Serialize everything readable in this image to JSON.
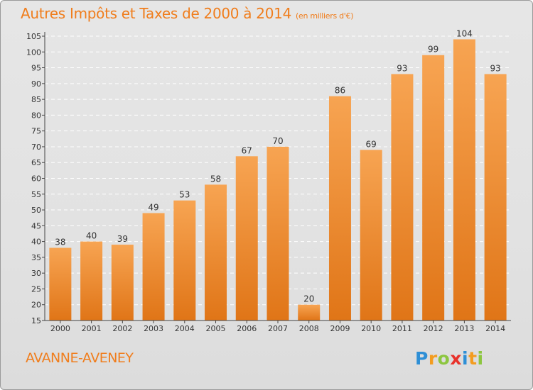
{
  "title": {
    "main": "Autres Impôts et Taxes de 2000 à 2014",
    "unit": "(en milliers d'€)"
  },
  "location": "AVANNE-AVENEY",
  "brand": {
    "name": "Proxiti",
    "letters": [
      {
        "char": "P",
        "color": "#2e8fd6"
      },
      {
        "char": "r",
        "color": "#f39c1f"
      },
      {
        "char": "o",
        "color": "#8cc63f"
      },
      {
        "char": "x",
        "color": "#e8322b"
      },
      {
        "char": "i",
        "color": "#2e8fd6"
      },
      {
        "char": "t",
        "color": "#f39c1f"
      },
      {
        "char": "i",
        "color": "#8cc63f"
      }
    ]
  },
  "colors": {
    "accent": "#f07d1c",
    "bar_top": "#f7a452",
    "bar_bottom": "#e07517",
    "axis": "#444444",
    "grid": "#ffffff"
  },
  "chart_data": {
    "type": "bar",
    "categories": [
      "2000",
      "2001",
      "2002",
      "2003",
      "2004",
      "2005",
      "2006",
      "2007",
      "2008",
      "2009",
      "2010",
      "2011",
      "2012",
      "2013",
      "2014"
    ],
    "values": [
      38,
      40,
      39,
      49,
      53,
      58,
      67,
      70,
      20,
      86,
      69,
      93,
      99,
      104,
      93
    ],
    "ylim": [
      15,
      105
    ],
    "ytick_step": 5,
    "grid": true,
    "data_labels": true
  }
}
